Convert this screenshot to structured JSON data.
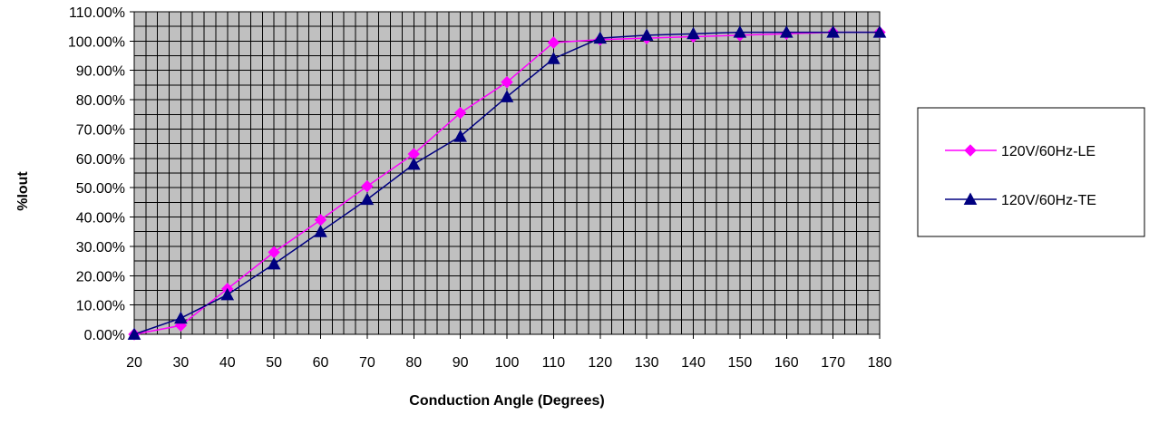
{
  "chart_data": {
    "type": "line",
    "title": "",
    "xlabel": "Conduction Angle (Degrees)",
    "ylabel": "%Iout",
    "x": [
      20,
      30,
      40,
      50,
      60,
      70,
      80,
      90,
      100,
      110,
      120,
      130,
      140,
      150,
      160,
      170,
      180
    ],
    "x_tick_labels": [
      "20",
      "30",
      "40",
      "50",
      "60",
      "70",
      "80",
      "90",
      "100",
      "110",
      "120",
      "130",
      "140",
      "150",
      "160",
      "170",
      "180"
    ],
    "ylim": [
      0,
      1.1
    ],
    "y_ticks": [
      0,
      0.1,
      0.2,
      0.3,
      0.4,
      0.5,
      0.6,
      0.7,
      0.8,
      0.9,
      1.0,
      1.1
    ],
    "y_tick_labels": [
      "0.00%",
      "10.00%",
      "20.00%",
      "30.00%",
      "40.00%",
      "50.00%",
      "60.00%",
      "70.00%",
      "80.00%",
      "90.00%",
      "100.00%",
      "110.00%"
    ],
    "grid": "on",
    "plot_background": "#c0c0c0",
    "legend_position": "right",
    "series": [
      {
        "name": "120V/60Hz-LE",
        "color": "#ff00ff",
        "marker": "diamond",
        "values": [
          0.0,
          0.03,
          0.155,
          0.28,
          0.39,
          0.505,
          0.615,
          0.755,
          0.86,
          0.995,
          1.005,
          1.01,
          1.015,
          1.02,
          1.025,
          1.03,
          1.03
        ]
      },
      {
        "name": "120V/60Hz-TE",
        "color": "#000080",
        "marker": "triangle",
        "values": [
          0.0,
          0.055,
          0.135,
          0.24,
          0.35,
          0.46,
          0.58,
          0.675,
          0.81,
          0.94,
          1.01,
          1.02,
          1.025,
          1.03,
          1.03,
          1.03,
          1.03
        ]
      }
    ]
  }
}
